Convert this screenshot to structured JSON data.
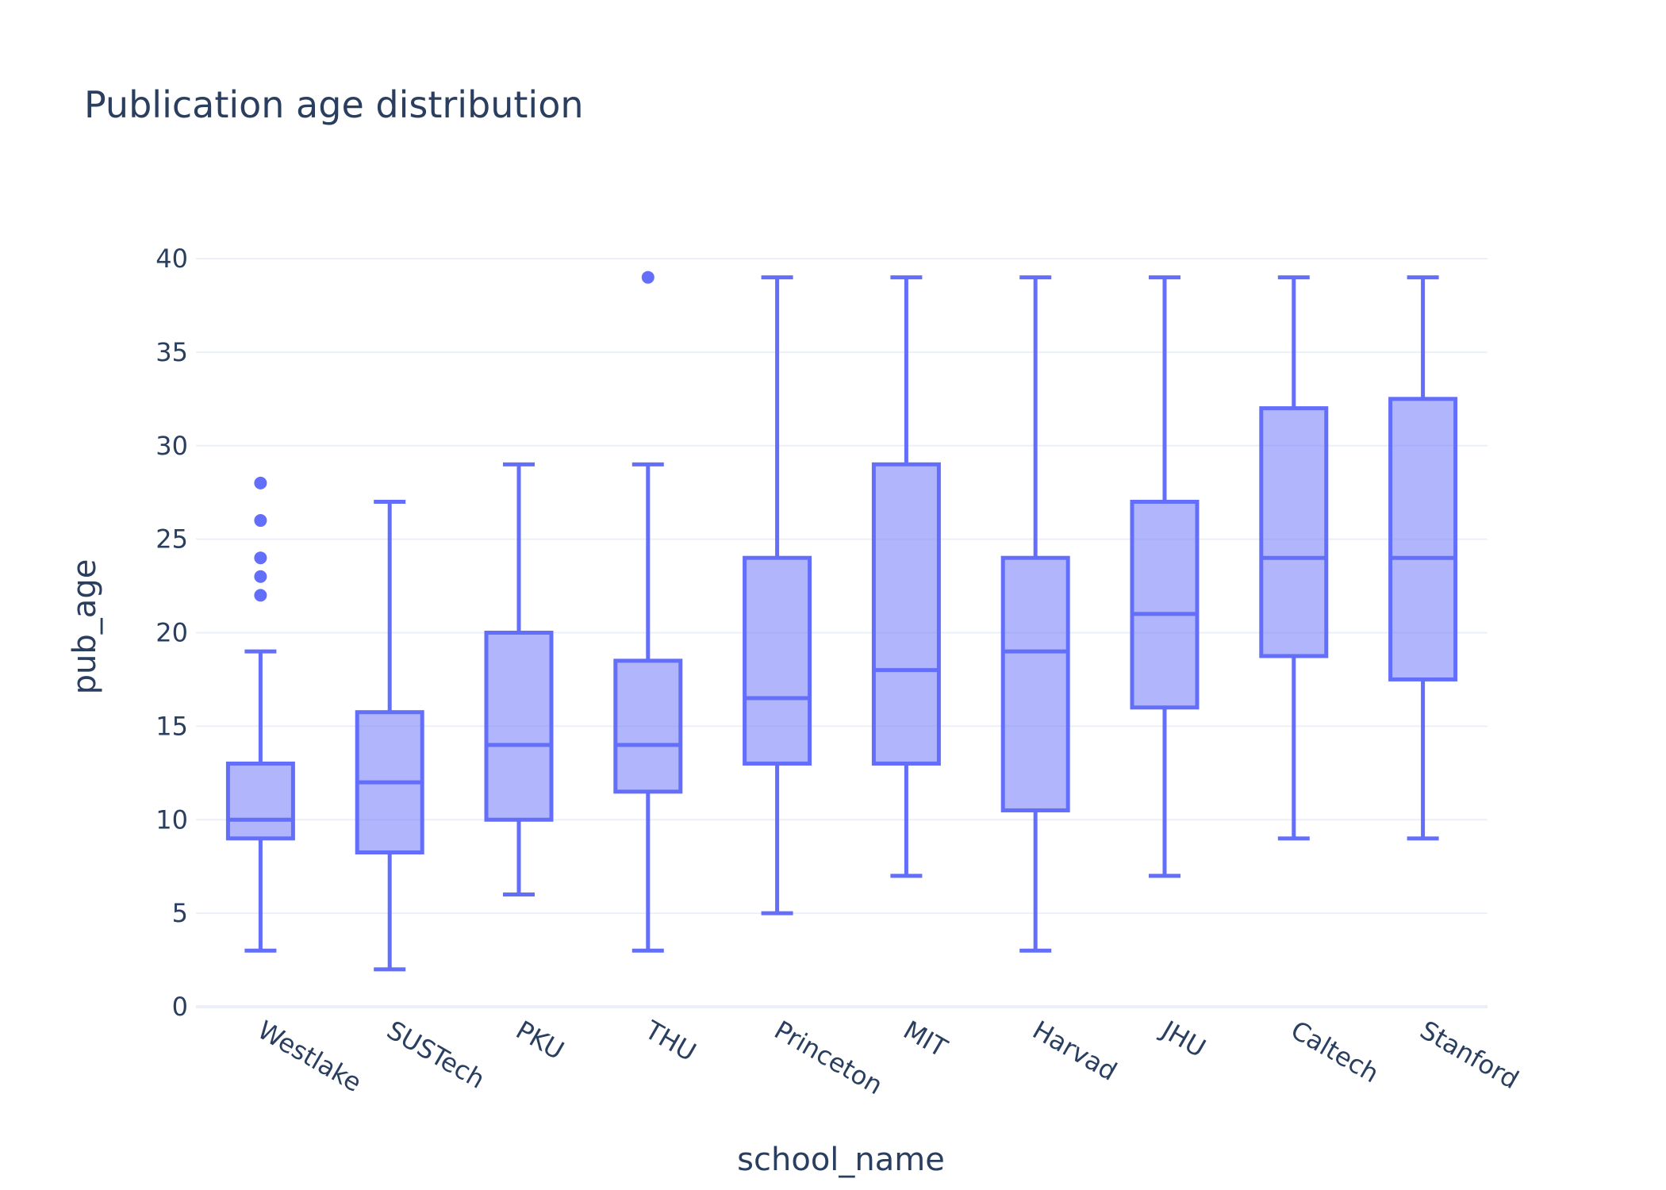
{
  "chart_data": {
    "type": "box",
    "title": "Publication age distribution",
    "xlabel": "school_name",
    "ylabel": "pub_age",
    "ylim": [
      0,
      40
    ],
    "yticks": [
      0,
      5,
      10,
      15,
      20,
      25,
      30,
      35,
      40
    ],
    "grid": true,
    "legend": "none",
    "colors": {
      "box_line": "#636efa",
      "box_fill": "#636efa",
      "grid": "#ebf0f8",
      "zeroline": "#ebf0f8",
      "text": "#2a3f5f"
    },
    "categories": [
      "Westlake",
      "SUSTech",
      "PKU",
      "THU",
      "Princeton",
      "MIT",
      "Harvad",
      "JHU",
      "Caltech",
      "Stanford"
    ],
    "boxes": [
      {
        "category": "Westlake",
        "min": 3,
        "q1": 9,
        "median": 10,
        "q3": 13,
        "max": 19,
        "outliers": [
          22,
          23,
          24,
          26,
          28
        ]
      },
      {
        "category": "SUSTech",
        "min": 2,
        "q1": 8.25,
        "median": 12,
        "q3": 15.75,
        "max": 27,
        "outliers": []
      },
      {
        "category": "PKU",
        "min": 6,
        "q1": 10,
        "median": 14,
        "q3": 20,
        "max": 29,
        "outliers": []
      },
      {
        "category": "THU",
        "min": 3,
        "q1": 11.5,
        "median": 14,
        "q3": 18.5,
        "max": 29,
        "outliers": [
          39
        ]
      },
      {
        "category": "Princeton",
        "min": 5,
        "q1": 13,
        "median": 16.5,
        "q3": 24,
        "max": 39,
        "outliers": []
      },
      {
        "category": "MIT",
        "min": 7,
        "q1": 13,
        "median": 18,
        "q3": 29,
        "max": 39,
        "outliers": []
      },
      {
        "category": "Harvad",
        "min": 3,
        "q1": 10.5,
        "median": 19,
        "q3": 24,
        "max": 39,
        "outliers": []
      },
      {
        "category": "JHU",
        "min": 7,
        "q1": 16,
        "median": 21,
        "q3": 27,
        "max": 39,
        "outliers": []
      },
      {
        "category": "Caltech",
        "min": 9,
        "q1": 18.75,
        "median": 24,
        "q3": 32,
        "max": 39,
        "outliers": []
      },
      {
        "category": "Stanford",
        "min": 9,
        "q1": 17.5,
        "median": 24,
        "q3": 32.5,
        "max": 39,
        "outliers": []
      }
    ]
  }
}
